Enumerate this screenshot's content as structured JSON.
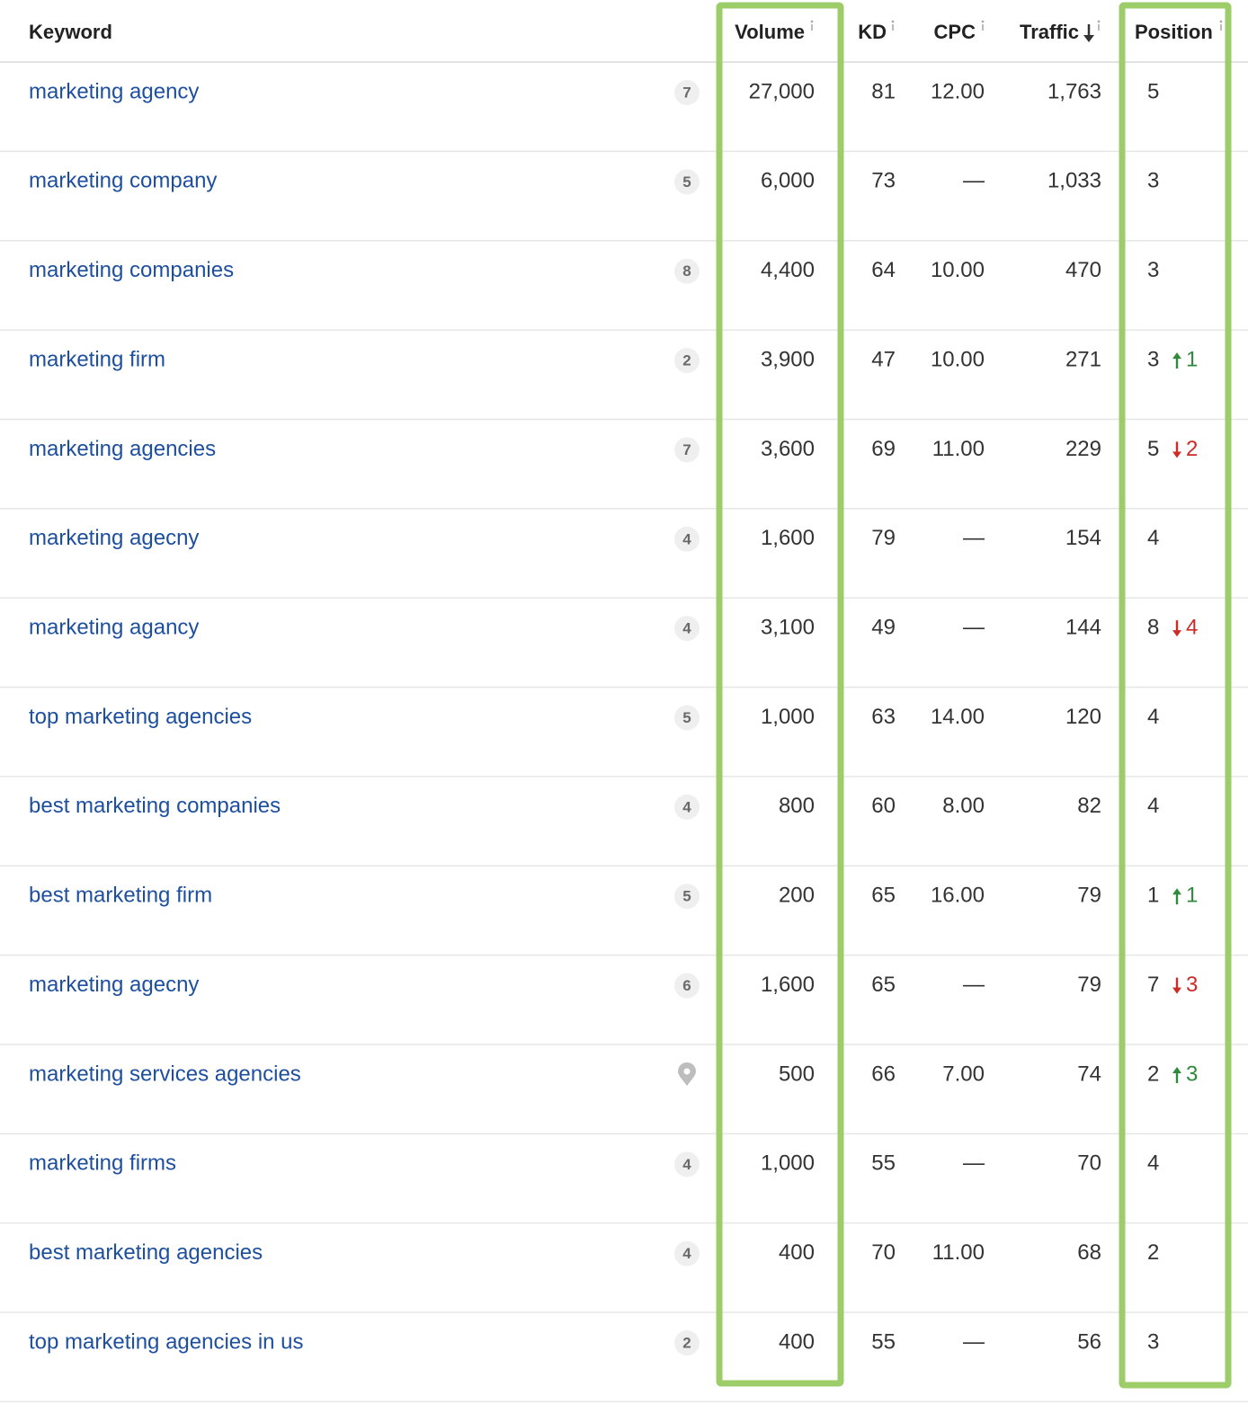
{
  "table": {
    "headers": {
      "keyword": "Keyword",
      "volume": "Volume",
      "kd": "KD",
      "cpc": "CPC",
      "traffic": "Traffic",
      "position": "Position"
    },
    "rows": [
      {
        "keyword": "marketing agency",
        "badge": "7",
        "volume": "27,000",
        "kd": "81",
        "cpc": "12.00",
        "traffic": "1,763",
        "position": "5",
        "change": null
      },
      {
        "keyword": "marketing company",
        "badge": "5",
        "volume": "6,000",
        "kd": "73",
        "cpc": "—",
        "traffic": "1,033",
        "position": "3",
        "change": null
      },
      {
        "keyword": "marketing companies",
        "badge": "8",
        "volume": "4,400",
        "kd": "64",
        "cpc": "10.00",
        "traffic": "470",
        "position": "3",
        "change": null
      },
      {
        "keyword": "marketing firm",
        "badge": "2",
        "volume": "3,900",
        "kd": "47",
        "cpc": "10.00",
        "traffic": "271",
        "position": "3",
        "change": {
          "direction": "up",
          "value": "1"
        }
      },
      {
        "keyword": "marketing agencies",
        "badge": "7",
        "volume": "3,600",
        "kd": "69",
        "cpc": "11.00",
        "traffic": "229",
        "position": "5",
        "change": {
          "direction": "down",
          "value": "2"
        }
      },
      {
        "keyword": "marketing agecny",
        "badge": "4",
        "volume": "1,600",
        "kd": "79",
        "cpc": "—",
        "traffic": "154",
        "position": "4",
        "change": null
      },
      {
        "keyword": "marketing agancy",
        "badge": "4",
        "volume": "3,100",
        "kd": "49",
        "cpc": "—",
        "traffic": "144",
        "position": "8",
        "change": {
          "direction": "down",
          "value": "4"
        }
      },
      {
        "keyword": "top marketing agencies",
        "badge": "5",
        "volume": "1,000",
        "kd": "63",
        "cpc": "14.00",
        "traffic": "120",
        "position": "4",
        "change": null
      },
      {
        "keyword": "best marketing companies",
        "badge": "4",
        "volume": "800",
        "kd": "60",
        "cpc": "8.00",
        "traffic": "82",
        "position": "4",
        "change": null
      },
      {
        "keyword": "best marketing firm",
        "badge": "5",
        "volume": "200",
        "kd": "65",
        "cpc": "16.00",
        "traffic": "79",
        "position": "1",
        "change": {
          "direction": "up",
          "value": "1"
        }
      },
      {
        "keyword": "marketing agecny",
        "badge": "6",
        "volume": "1,600",
        "kd": "65",
        "cpc": "—",
        "traffic": "79",
        "position": "7",
        "change": {
          "direction": "down",
          "value": "3"
        }
      },
      {
        "keyword": "marketing services agencies",
        "badge": null,
        "volume": "500",
        "kd": "66",
        "cpc": "7.00",
        "traffic": "74",
        "position": "2",
        "change": {
          "direction": "up",
          "value": "3"
        }
      },
      {
        "keyword": "marketing firms",
        "badge": "4",
        "volume": "1,000",
        "kd": "55",
        "cpc": "—",
        "traffic": "70",
        "position": "4",
        "change": null
      },
      {
        "keyword": "best marketing agencies",
        "badge": "4",
        "volume": "400",
        "kd": "70",
        "cpc": "11.00",
        "traffic": "68",
        "position": "2",
        "change": null
      },
      {
        "keyword": "top marketing agencies in us",
        "badge": "2",
        "volume": "400",
        "kd": "55",
        "cpc": "—",
        "traffic": "56",
        "position": "3",
        "change": null
      }
    ]
  }
}
